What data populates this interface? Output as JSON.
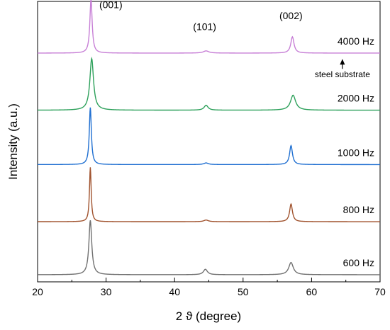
{
  "chart_data": {
    "type": "line",
    "title": "",
    "xlabel": "2 ϑ (degree)",
    "ylabel": "Intensity (a.u.)",
    "xlim": [
      20,
      70
    ],
    "xticks": [
      20,
      30,
      40,
      50,
      60,
      70
    ],
    "grid": false,
    "legend": "none",
    "y_ticks_shown": false,
    "series": [
      {
        "name": "4000 Hz",
        "color": "#c77fd6",
        "baseline_level": 0.81,
        "peaks": [
          {
            "x": 27.8,
            "height": 0.2,
            "width": 0.2
          },
          {
            "x": 44.6,
            "height": 0.008,
            "width": 0.5
          },
          {
            "x": 57.2,
            "height": 0.06,
            "width": 0.28
          }
        ]
      },
      {
        "name": "2000 Hz",
        "color": "#2ca05a",
        "baseline_level": 0.6,
        "peaks": [
          {
            "x": 27.9,
            "height": 0.19,
            "width": 0.32
          },
          {
            "x": 44.6,
            "height": 0.018,
            "width": 0.35
          },
          {
            "x": 57.3,
            "height": 0.055,
            "width": 0.45
          }
        ]
      },
      {
        "name": "1000 Hz",
        "color": "#1f6fd1",
        "baseline_level": 0.4,
        "peaks": [
          {
            "x": 27.7,
            "height": 0.21,
            "width": 0.18
          },
          {
            "x": 44.6,
            "height": 0.006,
            "width": 0.4
          },
          {
            "x": 57.0,
            "height": 0.07,
            "width": 0.25
          }
        ]
      },
      {
        "name": "800 Hz",
        "color": "#a0522d",
        "baseline_level": 0.19,
        "peaks": [
          {
            "x": 27.7,
            "height": 0.2,
            "width": 0.15
          },
          {
            "x": 44.6,
            "height": 0.006,
            "width": 0.4
          },
          {
            "x": 57.0,
            "height": 0.065,
            "width": 0.25
          }
        ]
      },
      {
        "name": "600 Hz",
        "color": "#707070",
        "baseline_level": -0.005,
        "peaks": [
          {
            "x": 27.7,
            "height": 0.2,
            "width": 0.25
          },
          {
            "x": 44.5,
            "height": 0.02,
            "width": 0.35
          },
          {
            "x": 57.0,
            "height": 0.045,
            "width": 0.4
          }
        ]
      }
    ],
    "annotations": [
      {
        "text": "(001)",
        "x": 29.0,
        "level": 0.975
      },
      {
        "text": "(101)",
        "x": 42.7,
        "level": 0.895
      },
      {
        "text": "(002)",
        "x": 55.3,
        "level": 0.935
      },
      {
        "text": "steel substrate",
        "x": 64.5,
        "level": 0.765,
        "arrow": true
      }
    ]
  }
}
